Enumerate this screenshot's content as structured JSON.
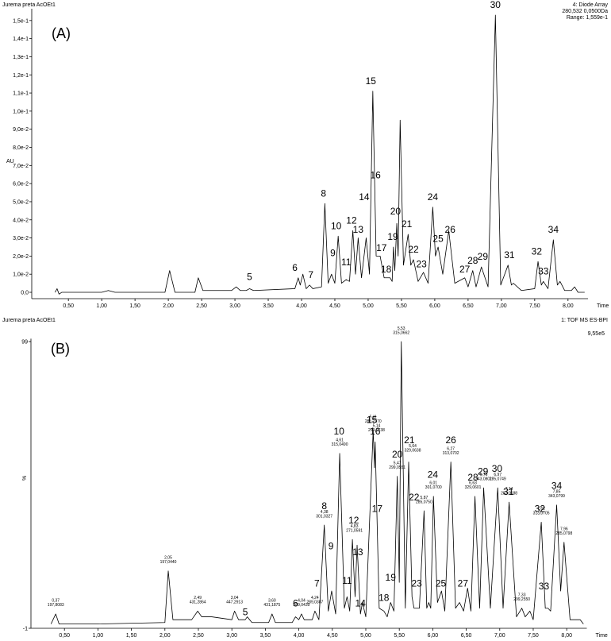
{
  "chart_data": [
    {
      "type": "line",
      "panel_label": "(A)",
      "sample": "Jurema preta AcOEt1",
      "detector": [
        "4: Diode Array",
        "280,532 0,0500Da",
        "Range: 1,559e-1"
      ],
      "ylabel": "AU",
      "xlabel": "Time",
      "xlim": [
        -0.05,
        8.3
      ],
      "ylim": [
        -0.0035,
        0.1565
      ],
      "xticks": [
        {
          "value": 0.5,
          "label": "0,50"
        },
        {
          "value": 1,
          "label": "1,00"
        },
        {
          "value": 1.5,
          "label": "1,50"
        },
        {
          "value": 2,
          "label": "2,00"
        },
        {
          "value": 2.5,
          "label": "2,50"
        },
        {
          "value": 3,
          "label": "3,00"
        },
        {
          "value": 3.5,
          "label": "3,50"
        },
        {
          "value": 4,
          "label": "4,00"
        },
        {
          "value": 4.5,
          "label": "4,50"
        },
        {
          "value": 5,
          "label": "5,00"
        },
        {
          "value": 5.5,
          "label": "5,50"
        },
        {
          "value": 6,
          "label": "6,00"
        },
        {
          "value": 6.5,
          "label": "6,50"
        },
        {
          "value": 7,
          "label": "7,00"
        },
        {
          "value": 7.5,
          "label": "7,50"
        },
        {
          "value": 8,
          "label": "8,00"
        }
      ],
      "yticks": [
        {
          "value": 0,
          "label": "0,0"
        },
        {
          "value": 0.01,
          "label": "1,0e-2"
        },
        {
          "value": 0.02,
          "label": "2,0e-2"
        },
        {
          "value": 0.03,
          "label": "3,0e-2"
        },
        {
          "value": 0.04,
          "label": "4,0e-2"
        },
        {
          "value": 0.05,
          "label": "5,0e-2"
        },
        {
          "value": 0.06,
          "label": "6,0e-2"
        },
        {
          "value": 0.07,
          "label": "7,0e-2"
        },
        {
          "value": 0.08,
          "label": "8,0e-2"
        },
        {
          "value": 0.09,
          "label": "9,0e-2"
        },
        {
          "value": 0.1,
          "label": "1,0e-1"
        },
        {
          "value": 0.11,
          "label": "1,1e-1"
        },
        {
          "value": 0.12,
          "label": "1,2e-1"
        },
        {
          "value": 0.13,
          "label": "1,3e-1"
        },
        {
          "value": 0.14,
          "label": "1,4e-1"
        },
        {
          "value": 0.15,
          "label": "1,5e-1"
        }
      ],
      "x": [
        0.3,
        0.33,
        0.36,
        0.4,
        1.0,
        1.1,
        1.2,
        1.95,
        2.02,
        2.1,
        2.4,
        2.45,
        2.52,
        2.95,
        3.02,
        3.08,
        3.17,
        3.22,
        3.28,
        3.9,
        3.95,
        3.98,
        4.02,
        4.07,
        4.12,
        4.17,
        4.3,
        4.35,
        4.4,
        4.45,
        4.5,
        4.55,
        4.6,
        4.67,
        4.72,
        4.77,
        4.81,
        4.85,
        4.9,
        4.97,
        5.02,
        5.07,
        5.12,
        5.18,
        5.24,
        5.33,
        5.36,
        5.38,
        5.4,
        5.43,
        5.45,
        5.48,
        5.53,
        5.6,
        5.64,
        5.68,
        5.75,
        5.83,
        5.9,
        5.97,
        6.01,
        6.05,
        6.12,
        6.21,
        6.3,
        6.45,
        6.5,
        6.57,
        6.62,
        6.7,
        6.8,
        6.91,
        6.99,
        7.1,
        7.15,
        7.18,
        7.3,
        7.5,
        7.55,
        7.6,
        7.63,
        7.7,
        7.78,
        7.84,
        7.88,
        7.95,
        8.05,
        8.1,
        8.15,
        8.25
      ],
      "series": [
        {
          "color": "#000000",
          "values": [
            0,
            0.002,
            -0.001,
            0,
            0,
            0.001,
            0,
            0,
            0.012,
            0,
            0,
            0.008,
            0.001,
            0.001,
            0.003,
            0.001,
            0.001,
            0.002,
            0.001,
            0.002,
            0.008,
            0.004,
            0.01,
            0.002,
            0.004,
            0.002,
            0.003,
            0.049,
            0.005,
            0.01,
            0.005,
            0.031,
            0.005,
            0.007,
            0.006,
            0.034,
            0.01,
            0.03,
            0.008,
            0.03,
            0.01,
            0.111,
            0.02,
            0.02,
            0.008,
            0.008,
            0.006,
            0.025,
            0.012,
            0.038,
            0.02,
            0.095,
            0.015,
            0.032,
            0.015,
            0.018,
            0.006,
            0.011,
            0.005,
            0.047,
            0.02,
            0.025,
            0.01,
            0.034,
            0.005,
            0.008,
            0.003,
            0.012,
            0.003,
            0.014,
            0.003,
            0.153,
            0.004,
            0.015,
            0.004,
            0.005,
            0.001,
            0.002,
            0.017,
            0.004,
            0.006,
            0.002,
            0.029,
            0.004,
            0.006,
            0.001,
            0.001,
            0.003,
            0,
            0
          ]
        }
      ],
      "peak_labels": [
        {
          "text": "5",
          "x": 3.22,
          "y": 0.006
        },
        {
          "text": "6",
          "x": 3.9,
          "y": 0.011
        },
        {
          "text": "7",
          "x": 4.14,
          "y": 0.007
        },
        {
          "text": "8",
          "x": 4.33,
          "y": 0.052
        },
        {
          "text": "9",
          "x": 4.47,
          "y": 0.019
        },
        {
          "text": "10",
          "x": 4.52,
          "y": 0.034
        },
        {
          "text": "11",
          "x": 4.67,
          "y": 0.014
        },
        {
          "text": "12",
          "x": 4.75,
          "y": 0.037
        },
        {
          "text": "13",
          "x": 4.85,
          "y": 0.032
        },
        {
          "text": "14",
          "x": 4.94,
          "y": 0.05
        },
        {
          "text": "15",
          "x": 5.04,
          "y": 0.114
        },
        {
          "text": "16",
          "x": 5.11,
          "y": 0.062
        },
        {
          "text": "17",
          "x": 5.2,
          "y": 0.022
        },
        {
          "text": "18",
          "x": 5.27,
          "y": 0.01
        },
        {
          "text": "19",
          "x": 5.37,
          "y": 0.028
        },
        {
          "text": "20",
          "x": 5.41,
          "y": 0.042
        },
        {
          "text": "21",
          "x": 5.58,
          "y": 0.035
        },
        {
          "text": "22",
          "x": 5.68,
          "y": 0.021
        },
        {
          "text": "23",
          "x": 5.8,
          "y": 0.013
        },
        {
          "text": "24",
          "x": 5.97,
          "y": 0.05
        },
        {
          "text": "25",
          "x": 6.05,
          "y": 0.027
        },
        {
          "text": "26",
          "x": 6.23,
          "y": 0.032
        },
        {
          "text": "27",
          "x": 6.45,
          "y": 0.01
        },
        {
          "text": "28",
          "x": 6.57,
          "y": 0.015
        },
        {
          "text": "29",
          "x": 6.72,
          "y": 0.017
        },
        {
          "text": "30",
          "x": 6.91,
          "y": 0.156
        },
        {
          "text": "31",
          "x": 7.12,
          "y": 0.018
        },
        {
          "text": "32",
          "x": 7.53,
          "y": 0.02
        },
        {
          "text": "33",
          "x": 7.63,
          "y": 0.009
        },
        {
          "text": "34",
          "x": 7.78,
          "y": 0.032
        }
      ]
    },
    {
      "type": "line",
      "panel_label": "(B)",
      "sample": "Jurema preta AcOEt1",
      "detector": [
        "1: TOF MS ES-BPI"
      ],
      "intensity": "9,55e5",
      "ylabel": "%",
      "xlabel": "Time",
      "xlim": [
        0,
        8.3
      ],
      "ylim": [
        -1,
        100
      ],
      "xticks": [
        {
          "value": 0.5,
          "label": "0,50"
        },
        {
          "value": 1,
          "label": "1,00"
        },
        {
          "value": 1.5,
          "label": "1,50"
        },
        {
          "value": 2,
          "label": "2,00"
        },
        {
          "value": 2.5,
          "label": "2,50"
        },
        {
          "value": 3,
          "label": "3,00"
        },
        {
          "value": 3.5,
          "label": "3,50"
        },
        {
          "value": 4,
          "label": "4,00"
        },
        {
          "value": 4.5,
          "label": "4,50"
        },
        {
          "value": 5,
          "label": "5,00"
        },
        {
          "value": 5.5,
          "label": "5,50"
        },
        {
          "value": 6,
          "label": "6,00"
        },
        {
          "value": 6.5,
          "label": "6,50"
        },
        {
          "value": 7,
          "label": "7,00"
        },
        {
          "value": 7.5,
          "label": "7,50"
        },
        {
          "value": 8,
          "label": "8,00"
        }
      ],
      "yticks": [
        -1,
        99
      ],
      "x": [
        0.3,
        0.37,
        0.42,
        1.0,
        2.0,
        2.05,
        2.12,
        2.4,
        2.49,
        2.55,
        2.7,
        3.0,
        3.04,
        3.1,
        3.2,
        3.23,
        3.3,
        3.55,
        3.6,
        3.65,
        3.9,
        3.95,
        4.0,
        4.04,
        4.08,
        4.2,
        4.24,
        4.3,
        4.38,
        4.44,
        4.49,
        4.55,
        4.61,
        4.68,
        4.72,
        4.76,
        4.8,
        4.84,
        4.87,
        4.92,
        4.95,
        5.0,
        5.11,
        5.13,
        5.14,
        5.2,
        5.27,
        5.32,
        5.37,
        5.42,
        5.47,
        5.5,
        5.53,
        5.59,
        5.64,
        5.69,
        5.72,
        5.8,
        5.87,
        5.91,
        5.94,
        5.97,
        6.01,
        6.07,
        6.13,
        6.18,
        6.27,
        6.34,
        6.4,
        6.46,
        6.52,
        6.57,
        6.63,
        6.7,
        6.76,
        6.86,
        6.97,
        7.05,
        7.14,
        7.25,
        7.33,
        7.38,
        7.45,
        7.5,
        7.62,
        7.68,
        7.72,
        7.76,
        7.85,
        7.91,
        7.96,
        8.05,
        8.2,
        8.25
      ],
      "series": [
        {
          "color": "#000000",
          "values": [
            0.5,
            4,
            0.5,
            0.5,
            1,
            19,
            2,
            2,
            5,
            3,
            3,
            2,
            5,
            2,
            2,
            3,
            1,
            1,
            4,
            1,
            1,
            3,
            2,
            4,
            2,
            2,
            5,
            2,
            35,
            5,
            12,
            4,
            60,
            6,
            10,
            5,
            30,
            10,
            28,
            4,
            8,
            3,
            68,
            55,
            64,
            6,
            5,
            3,
            8,
            5,
            52,
            15,
            99,
            6,
            57,
            10,
            6,
            6,
            40,
            6,
            8,
            6,
            45,
            8,
            12,
            5,
            57,
            6,
            8,
            5,
            13,
            5,
            45,
            6,
            48,
            6,
            48,
            6,
            43,
            3,
            6,
            3,
            5,
            2,
            36,
            6,
            6,
            5,
            42,
            12,
            29,
            2,
            2,
            0.5
          ]
        }
      ],
      "peak_labels": [
        {
          "text": "5",
          "x": 3.2,
          "y": 3
        },
        {
          "text": "6",
          "x": 3.95,
          "y": 6
        },
        {
          "text": "7",
          "x": 4.27,
          "y": 13
        },
        {
          "text": "8",
          "x": 4.38,
          "y": 40
        },
        {
          "text": "9",
          "x": 4.48,
          "y": 26
        },
        {
          "text": "10",
          "x": 4.6,
          "y": 66
        },
        {
          "text": "11",
          "x": 4.72,
          "y": 14
        },
        {
          "text": "12",
          "x": 4.82,
          "y": 35
        },
        {
          "text": "13",
          "x": 4.88,
          "y": 24
        },
        {
          "text": "14",
          "x": 4.92,
          "y": 6
        },
        {
          "text": "15",
          "x": 5.09,
          "y": 70
        },
        {
          "text": "16",
          "x": 5.14,
          "y": 66
        },
        {
          "text": "17",
          "x": 5.17,
          "y": 39
        },
        {
          "text": "18",
          "x": 5.27,
          "y": 8
        },
        {
          "text": "19",
          "x": 5.37,
          "y": 15
        },
        {
          "text": "20",
          "x": 5.47,
          "y": 58
        },
        {
          "text": "21",
          "x": 5.65,
          "y": 63
        },
        {
          "text": "22",
          "x": 5.72,
          "y": 43
        },
        {
          "text": "23",
          "x": 5.76,
          "y": 13
        },
        {
          "text": "24",
          "x": 6.0,
          "y": 51
        },
        {
          "text": "25",
          "x": 6.12,
          "y": 13
        },
        {
          "text": "26",
          "x": 6.27,
          "y": 63
        },
        {
          "text": "27",
          "x": 6.45,
          "y": 13
        },
        {
          "text": "28",
          "x": 6.6,
          "y": 50
        },
        {
          "text": "29",
          "x": 6.75,
          "y": 52
        },
        {
          "text": "30",
          "x": 6.96,
          "y": 53
        },
        {
          "text": "31",
          "x": 7.13,
          "y": 45
        },
        {
          "text": "32",
          "x": 7.6,
          "y": 39
        },
        {
          "text": "33",
          "x": 7.66,
          "y": 12
        },
        {
          "text": "34",
          "x": 7.85,
          "y": 47
        }
      ],
      "rt_labels": [
        {
          "text": [
            "0,37",
            "197,8083"
          ],
          "x": 0.37,
          "y": 6
        },
        {
          "text": [
            "2,05",
            "197,0440"
          ],
          "x": 2.05,
          "y": 21
        },
        {
          "text": [
            "2,49",
            "431,2864"
          ],
          "x": 2.49,
          "y": 7
        },
        {
          "text": [
            "3,04",
            "447,2913"
          ],
          "x": 3.04,
          "y": 7
        },
        {
          "text": [
            "3,60",
            "431,1875"
          ],
          "x": 3.6,
          "y": 6
        },
        {
          "text": [
            "4,04",
            "289,0439"
          ],
          "x": 4.04,
          "y": 6
        },
        {
          "text": [
            "4,24",
            "289,0387"
          ],
          "x": 4.24,
          "y": 7
        },
        {
          "text": [
            "4,38",
            "301,0327"
          ],
          "x": 4.38,
          "y": 37
        },
        {
          "text": [
            "4,61",
            "315,0490"
          ],
          "x": 4.61,
          "y": 62
        },
        {
          "text": [
            "4,83",
            "271,0591"
          ],
          "x": 4.83,
          "y": 32
        },
        {
          "text": [
            "5,11",
            "285,2370"
          ],
          "x": 5.11,
          "y": 70
        },
        {
          "text": [
            "5,14",
            "299,0538"
          ],
          "x": 5.16,
          "y": 67
        },
        {
          "text": [
            "5,47",
            "299,0551"
          ],
          "x": 5.47,
          "y": 54
        },
        {
          "text": [
            "5,53",
            "315,0662"
          ],
          "x": 5.53,
          "y": 101
        },
        {
          "text": [
            "5,64",
            "329,0638"
          ],
          "x": 5.7,
          "y": 60
        },
        {
          "text": [
            "5,87",
            "285,0750"
          ],
          "x": 5.87,
          "y": 42
        },
        {
          "text": [
            "6,01",
            "301,0700"
          ],
          "x": 6.01,
          "y": 47
        },
        {
          "text": [
            "6,27",
            "313,0702"
          ],
          "x": 6.27,
          "y": 59
        },
        {
          "text": [
            "6,63",
            "329,0601"
          ],
          "x": 6.6,
          "y": 47
        },
        {
          "text": [
            "6,76",
            "343,0801"
          ],
          "x": 6.76,
          "y": 50
        },
        {
          "text": [
            "6,97",
            "285,0749"
          ],
          "x": 6.97,
          "y": 50
        },
        {
          "text": [
            "7,14",
            "283,0588"
          ],
          "x": 7.14,
          "y": 45
        },
        {
          "text": [
            "7,33",
            "299,2550"
          ],
          "x": 7.33,
          "y": 8
        },
        {
          "text": [
            "7,62",
            "313,0705"
          ],
          "x": 7.62,
          "y": 38
        },
        {
          "text": [
            "7,85",
            "343,0799"
          ],
          "x": 7.85,
          "y": 44
        },
        {
          "text": [
            "7,96",
            "285,0798"
          ],
          "x": 7.96,
          "y": 31
        }
      ]
    }
  ]
}
